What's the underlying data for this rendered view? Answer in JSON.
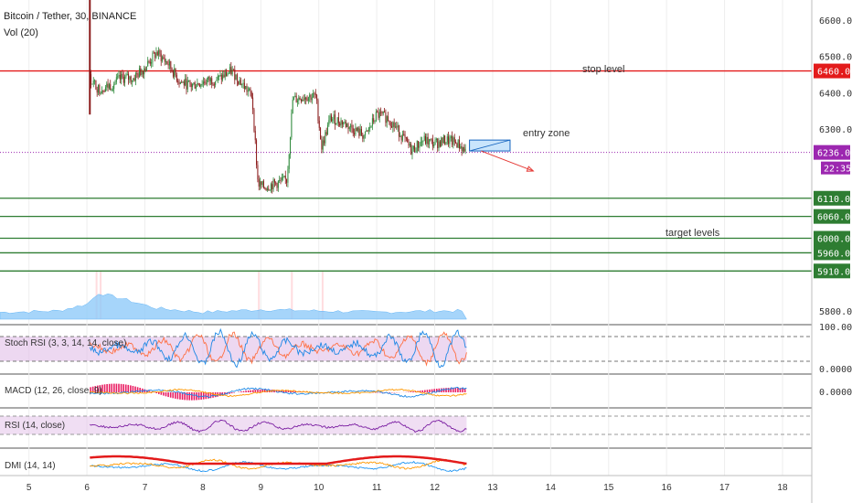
{
  "header": {
    "symbol": "Bitcoin / Tether, 30, BINANCE",
    "volume_label": "Vol (20)"
  },
  "colors": {
    "up": "#2f8a3c",
    "down": "#8b1a1a",
    "stop": "#e31b1b",
    "target": "#2e7d32",
    "current": "#9c27b0",
    "volume": "#90caf9",
    "rsi_band": "#e1bee7",
    "macd_hist": "#e91e63",
    "dmi_adx": "#e31b1b",
    "dmi_plus": "#ff9800",
    "dmi_minus": "#2196f3"
  },
  "annotations": {
    "stop_level": "stop level",
    "entry_zone": "entry zone",
    "target_levels": "target levels"
  },
  "price_axis": {
    "ticks": [
      "6600.00",
      "6500.00",
      "6400.00",
      "6300.00",
      "5800.00"
    ],
    "min": 5780,
    "max": 6640
  },
  "levels": {
    "stop": {
      "value": 6460,
      "label": "6460.00"
    },
    "current": {
      "value": 6236.01,
      "label": "6236.01",
      "countdown": "22:35"
    },
    "targets": [
      {
        "value": 6110,
        "label": "6110.00"
      },
      {
        "value": 6060,
        "label": "6060.00"
      },
      {
        "value": 6000,
        "label": "6000.00"
      },
      {
        "value": 5960,
        "label": "5960.00"
      },
      {
        "value": 5910,
        "label": "5910.00"
      }
    ]
  },
  "x_axis": {
    "labels": [
      "5",
      "6",
      "7",
      "8",
      "9",
      "10",
      "11",
      "12",
      "13",
      "14",
      "15",
      "16",
      "17",
      "18"
    ],
    "day_min": 4.5,
    "day_max": 18.3
  },
  "indicators": {
    "stoch": {
      "label": "Stoch RSI (3, 3, 14, 14, close)",
      "top_tick": "100.0000",
      "bottom_tick": "0.0000"
    },
    "macd": {
      "label": "MACD (12, 26, close, 9)",
      "zero_tick": "0.0000"
    },
    "rsi": {
      "label": "RSI (14, close)"
    },
    "dmi": {
      "label": "DMI (14, 14)"
    }
  },
  "chart_data": {
    "type": "candlestick",
    "title": "Bitcoin / Tether, 30, BINANCE",
    "x_unit": "day of month",
    "ylim": [
      5780,
      6640
    ],
    "price_path": [
      {
        "day": 6.05,
        "price": 6440
      },
      {
        "day": 6.2,
        "price": 6410
      },
      {
        "day": 6.4,
        "price": 6420
      },
      {
        "day": 6.6,
        "price": 6440
      },
      {
        "day": 6.8,
        "price": 6440
      },
      {
        "day": 7.0,
        "price": 6470
      },
      {
        "day": 7.2,
        "price": 6510
      },
      {
        "day": 7.4,
        "price": 6480
      },
      {
        "day": 7.6,
        "price": 6430
      },
      {
        "day": 7.8,
        "price": 6420
      },
      {
        "day": 8.0,
        "price": 6430
      },
      {
        "day": 8.3,
        "price": 6440
      },
      {
        "day": 8.5,
        "price": 6460
      },
      {
        "day": 8.7,
        "price": 6420
      },
      {
        "day": 8.85,
        "price": 6390
      },
      {
        "day": 8.95,
        "price": 6150
      },
      {
        "day": 9.05,
        "price": 6140
      },
      {
        "day": 9.25,
        "price": 6150
      },
      {
        "day": 9.45,
        "price": 6160
      },
      {
        "day": 9.55,
        "price": 6380
      },
      {
        "day": 9.75,
        "price": 6390
      },
      {
        "day": 9.95,
        "price": 6390
      },
      {
        "day": 10.05,
        "price": 6250
      },
      {
        "day": 10.2,
        "price": 6330
      },
      {
        "day": 10.4,
        "price": 6320
      },
      {
        "day": 10.6,
        "price": 6300
      },
      {
        "day": 10.8,
        "price": 6280
      },
      {
        "day": 11.0,
        "price": 6340
      },
      {
        "day": 11.2,
        "price": 6330
      },
      {
        "day": 11.4,
        "price": 6290
      },
      {
        "day": 11.6,
        "price": 6240
      },
      {
        "day": 11.8,
        "price": 6270
      },
      {
        "day": 12.0,
        "price": 6260
      },
      {
        "day": 12.2,
        "price": 6270
      },
      {
        "day": 12.4,
        "price": 6260
      },
      {
        "day": 12.55,
        "price": 6236
      }
    ],
    "volume_profile": [
      {
        "day": 4.5,
        "v": 0.25
      },
      {
        "day": 5.5,
        "v": 0.3
      },
      {
        "day": 6.0,
        "v": 0.55
      },
      {
        "day": 6.2,
        "v": 0.95
      },
      {
        "day": 6.6,
        "v": 0.75
      },
      {
        "day": 7.2,
        "v": 0.4
      },
      {
        "day": 8.0,
        "v": 0.25
      },
      {
        "day": 9.0,
        "v": 0.35
      },
      {
        "day": 10.0,
        "v": 0.3
      },
      {
        "day": 11.0,
        "v": 0.25
      },
      {
        "day": 12.0,
        "v": 0.3
      },
      {
        "day": 12.55,
        "v": 0.3
      }
    ],
    "entry_zone": {
      "day_start": 12.6,
      "day_end": 13.3,
      "price_low": 6240,
      "price_high": 6270
    },
    "projection": {
      "from": {
        "day": 12.8,
        "price": 6240
      },
      "to": {
        "day": 13.7,
        "price": 6185
      }
    }
  }
}
